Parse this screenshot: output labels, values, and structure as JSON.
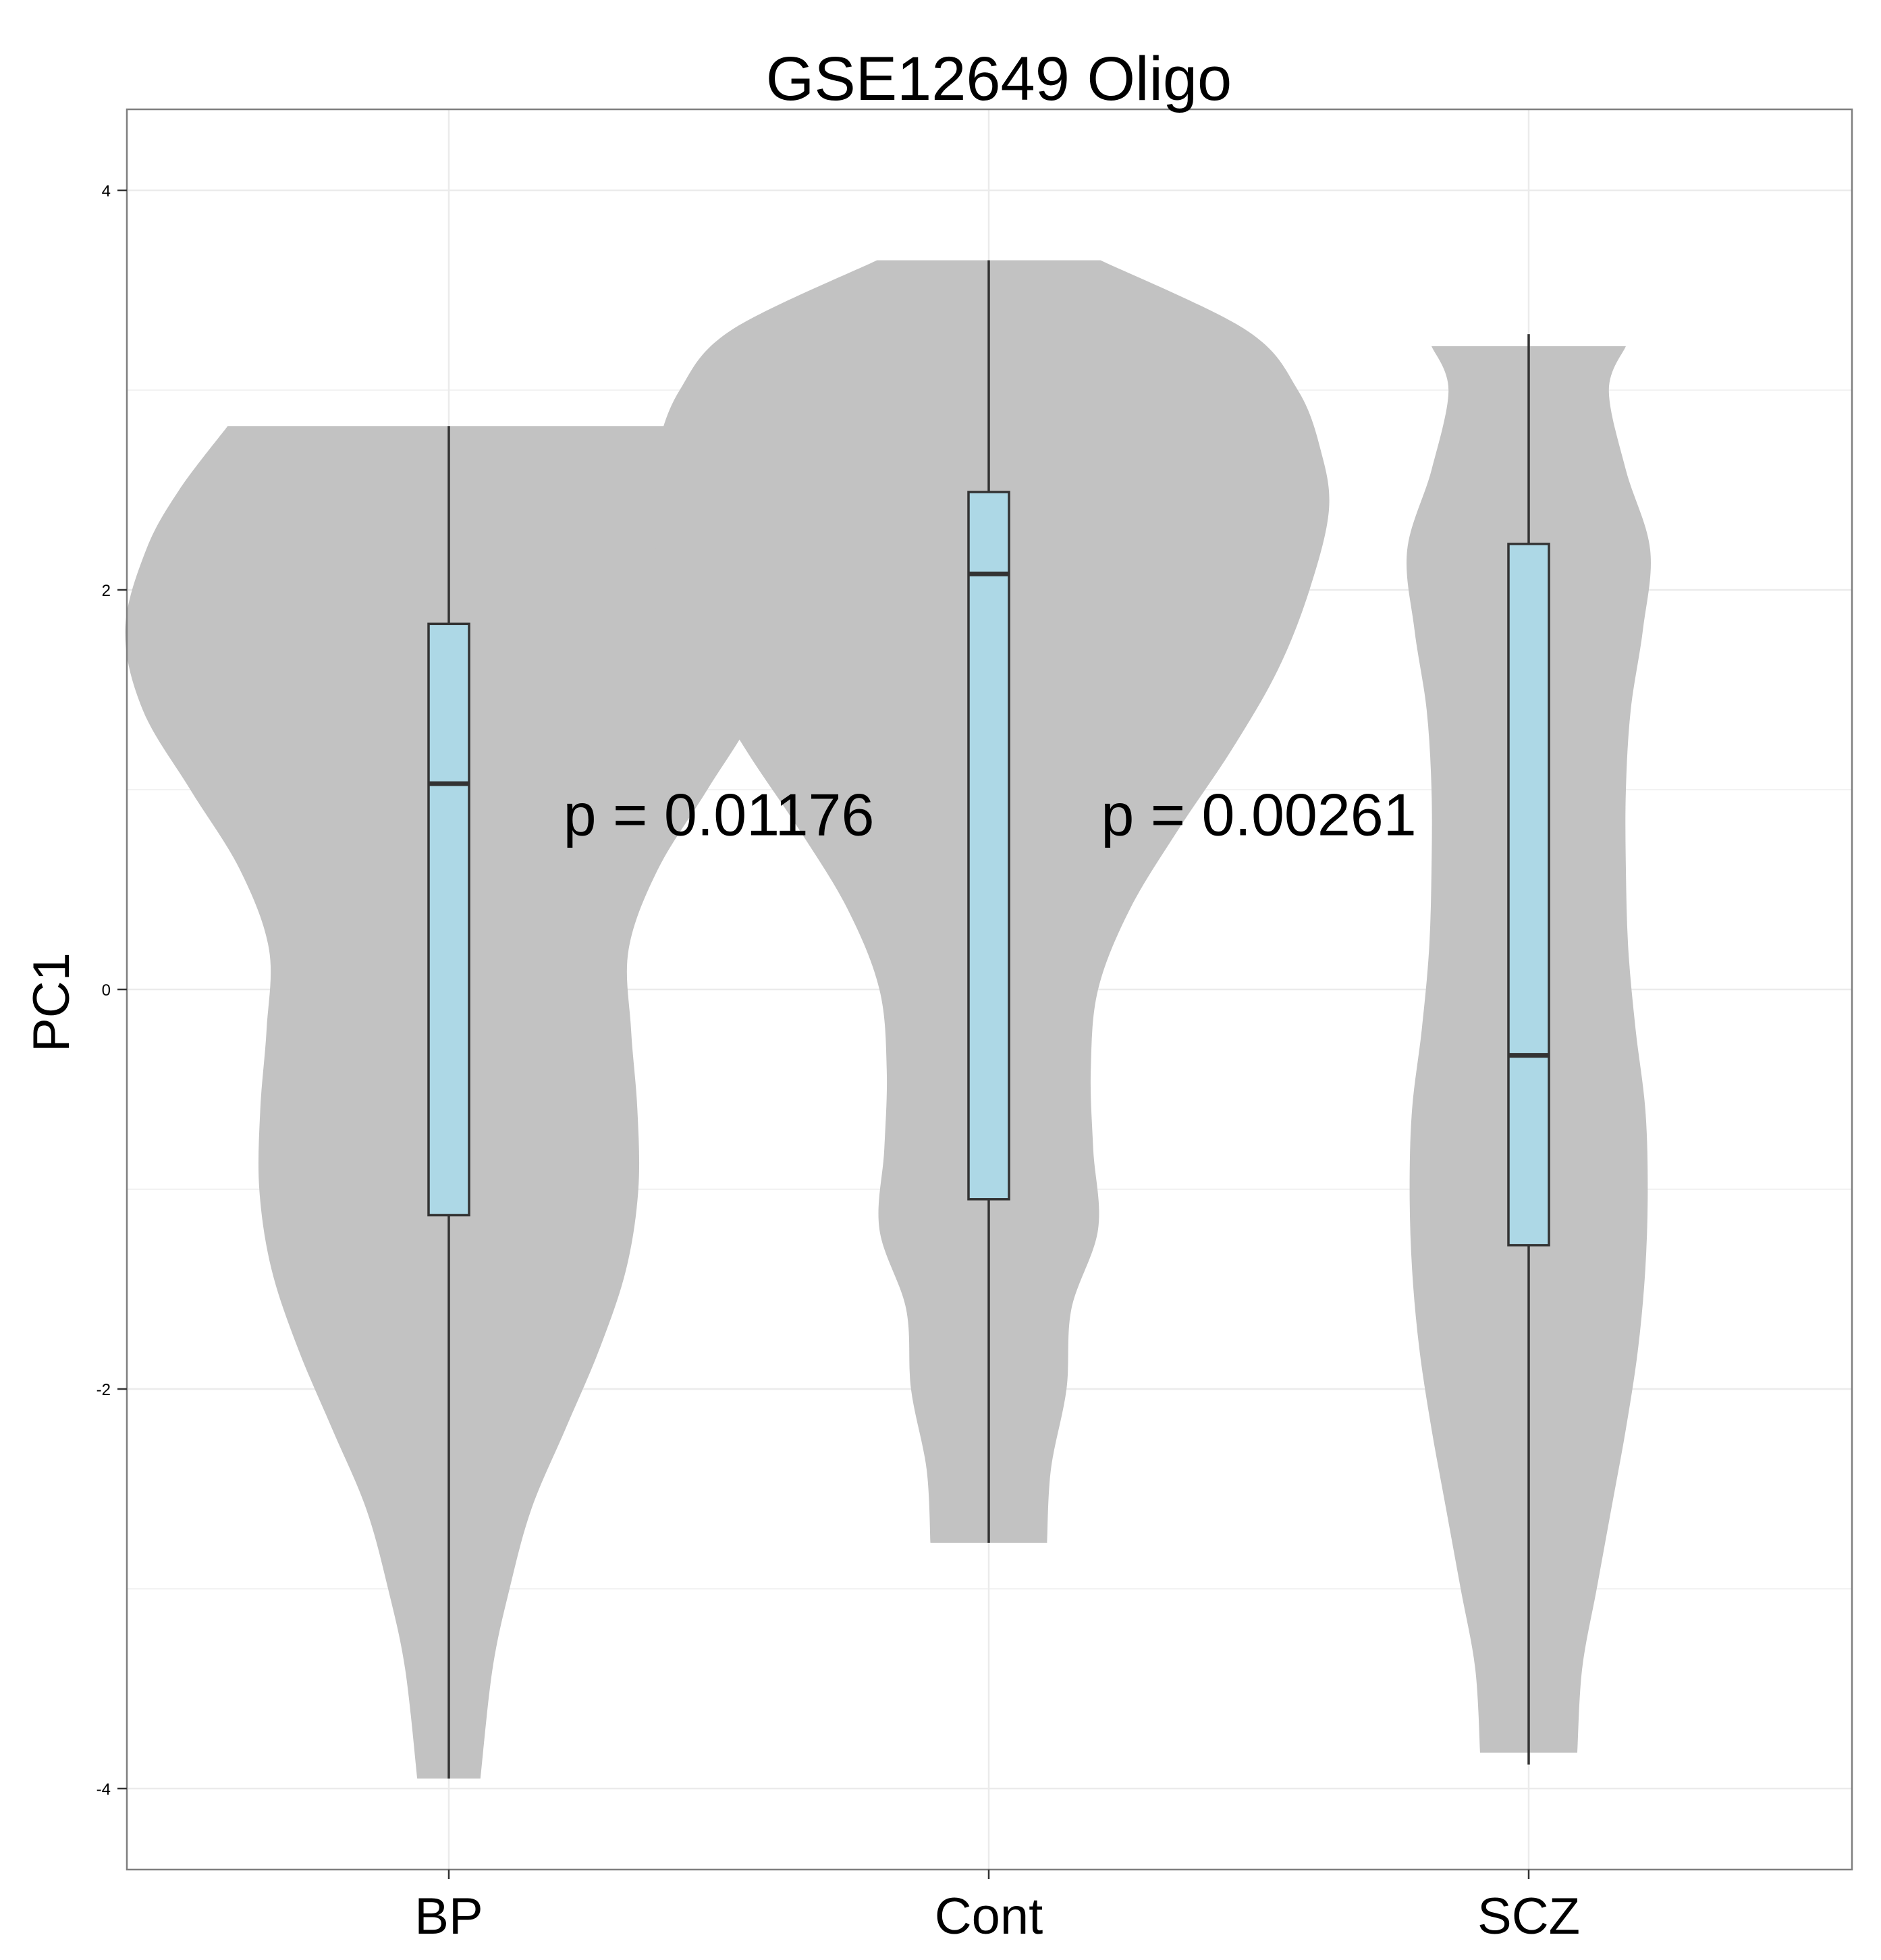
{
  "chart_data": {
    "type": "violin",
    "title": "GSE12649 Oligo",
    "xlabel": "",
    "ylabel": "PC1",
    "categories": [
      "BP",
      "Cont",
      "SCZ"
    ],
    "ylim": [
      -4.4,
      4.4
    ],
    "yticks": [
      4,
      2,
      0,
      -2,
      -4
    ],
    "ytick_labels": [
      "4",
      "2",
      "0",
      "-2",
      "-4"
    ],
    "grid": true,
    "colors": {
      "violin": "#c2c2c2",
      "box": "#add8e6",
      "outline": "#333333",
      "grid": "#ebebeb",
      "panel_border": "#7f7f7f"
    },
    "groups": [
      {
        "name": "BP",
        "min": -3.95,
        "q1": -1.13,
        "median": 1.03,
        "q3": 1.83,
        "max": 2.82,
        "density": [
          [
            2.82,
            0.455
          ],
          [
            2.5,
            0.555
          ],
          [
            2.2,
            0.623
          ],
          [
            1.8,
            0.666
          ],
          [
            1.4,
            0.63
          ],
          [
            1.0,
            0.532
          ],
          [
            0.6,
            0.43
          ],
          [
            0.2,
            0.37
          ],
          [
            -0.2,
            0.375
          ],
          [
            -0.6,
            0.388
          ],
          [
            -1.0,
            0.39
          ],
          [
            -1.4,
            0.365
          ],
          [
            -1.8,
            0.31
          ],
          [
            -2.2,
            0.24
          ],
          [
            -2.6,
            0.17
          ],
          [
            -3.0,
            0.125
          ],
          [
            -3.4,
            0.09
          ],
          [
            -3.95,
            0.065
          ]
        ]
      },
      {
        "name": "Cont",
        "min": -2.77,
        "q1": -1.05,
        "median": 2.08,
        "q3": 2.49,
        "max": 3.65,
        "density": [
          [
            3.65,
            0.23
          ],
          [
            3.3,
            0.53
          ],
          [
            3.0,
            0.636
          ],
          [
            2.7,
            0.683
          ],
          [
            2.4,
            0.7
          ],
          [
            2.0,
            0.66
          ],
          [
            1.6,
            0.595
          ],
          [
            1.2,
            0.5
          ],
          [
            0.8,
            0.39
          ],
          [
            0.4,
            0.29
          ],
          [
            0.0,
            0.225
          ],
          [
            -0.4,
            0.21
          ],
          [
            -0.8,
            0.215
          ],
          [
            -1.2,
            0.225
          ],
          [
            -1.6,
            0.17
          ],
          [
            -2.0,
            0.16
          ],
          [
            -2.4,
            0.128
          ],
          [
            -2.77,
            0.12
          ]
        ]
      },
      {
        "name": "SCZ",
        "min": -3.88,
        "q1": -1.28,
        "median": -0.33,
        "q3": 2.23,
        "max": 3.28,
        "density": [
          [
            3.22,
            0.2
          ],
          [
            3.0,
            0.165
          ],
          [
            2.6,
            0.2
          ],
          [
            2.2,
            0.25
          ],
          [
            1.8,
            0.235
          ],
          [
            1.4,
            0.21
          ],
          [
            1.0,
            0.2
          ],
          [
            0.6,
            0.2
          ],
          [
            0.2,
            0.205
          ],
          [
            -0.2,
            0.22
          ],
          [
            -0.6,
            0.24
          ],
          [
            -1.0,
            0.245
          ],
          [
            -1.4,
            0.24
          ],
          [
            -1.8,
            0.225
          ],
          [
            -2.2,
            0.2
          ],
          [
            -2.6,
            0.17
          ],
          [
            -3.0,
            0.14
          ],
          [
            -3.4,
            0.11
          ],
          [
            -3.82,
            0.1
          ]
        ]
      }
    ],
    "annotations": [
      {
        "text": "p = 0.01176",
        "x": 1.5,
        "y": 0.88
      },
      {
        "text": "p = 0.00261",
        "x": 2.5,
        "y": 0.88
      }
    ]
  }
}
